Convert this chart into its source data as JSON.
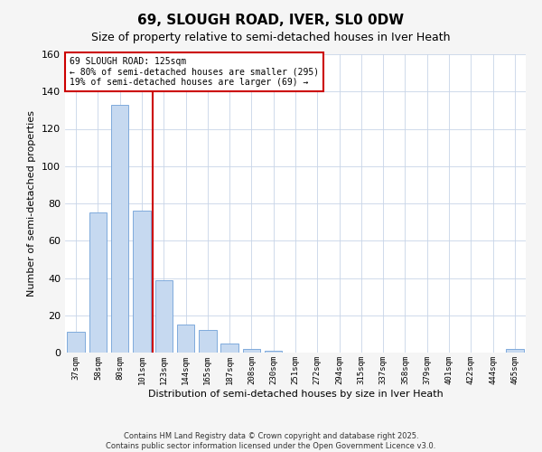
{
  "title": "69, SLOUGH ROAD, IVER, SL0 0DW",
  "subtitle": "Size of property relative to semi-detached houses in Iver Heath",
  "xlabel": "Distribution of semi-detached houses by size in Iver Heath",
  "ylabel": "Number of semi-detached properties",
  "bar_labels": [
    "37sqm",
    "58sqm",
    "80sqm",
    "101sqm",
    "123sqm",
    "144sqm",
    "165sqm",
    "187sqm",
    "208sqm",
    "230sqm",
    "251sqm",
    "272sqm",
    "294sqm",
    "315sqm",
    "337sqm",
    "358sqm",
    "379sqm",
    "401sqm",
    "422sqm",
    "444sqm",
    "465sqm"
  ],
  "bar_values": [
    11,
    75,
    133,
    76,
    39,
    15,
    12,
    5,
    2,
    1,
    0,
    0,
    0,
    0,
    0,
    0,
    0,
    0,
    0,
    0,
    2
  ],
  "bar_color": "#c6d9f0",
  "bar_edge_color": "#7faadc",
  "vline_index": 4,
  "vline_color": "#cc0000",
  "annotation_title": "69 SLOUGH ROAD: 125sqm",
  "annotation_line1": "← 80% of semi-detached houses are smaller (295)",
  "annotation_line2": "19% of semi-detached houses are larger (69) →",
  "annotation_box_color": "#ffffff",
  "annotation_box_edge": "#cc0000",
  "ylim": [
    0,
    160
  ],
  "yticks": [
    0,
    20,
    40,
    60,
    80,
    100,
    120,
    140,
    160
  ],
  "footer1": "Contains HM Land Registry data © Crown copyright and database right 2025.",
  "footer2": "Contains public sector information licensed under the Open Government Licence v3.0.",
  "bg_color": "#f5f5f5",
  "plot_bg_color": "#ffffff",
  "grid_color": "#c8d4e8"
}
